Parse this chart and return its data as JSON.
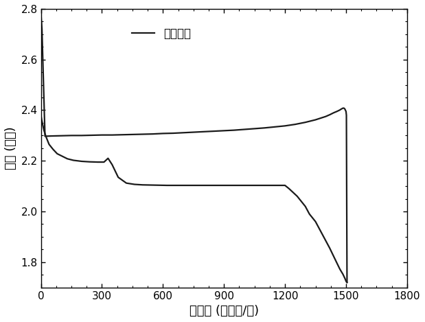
{
  "xlabel": "比容量 (毫安时/克)",
  "ylabel": "电压 (伏特)",
  "legend_label": "第一循环",
  "xlim": [
    0,
    1800
  ],
  "ylim": [
    1.7,
    2.8
  ],
  "xticks": [
    0,
    300,
    600,
    900,
    1200,
    1500,
    1800
  ],
  "yticks": [
    1.8,
    2.0,
    2.2,
    2.4,
    2.6,
    2.8
  ],
  "line_color": "#1a1a1a",
  "line_width": 1.6,
  "background_color": "#ffffff",
  "discharge_x": [
    0,
    3,
    8,
    15,
    25,
    40,
    60,
    80,
    100,
    130,
    160,
    200,
    240,
    280,
    310,
    330,
    350,
    380,
    420,
    460,
    500,
    560,
    620,
    700,
    780,
    860,
    940,
    1020,
    1100,
    1180,
    1200,
    1220,
    1240,
    1260,
    1280,
    1300,
    1320,
    1350,
    1390,
    1420,
    1450,
    1470,
    1485,
    1495,
    1500,
    1502,
    1505
  ],
  "discharge_y": [
    2.38,
    2.365,
    2.345,
    2.32,
    2.295,
    2.265,
    2.245,
    2.228,
    2.22,
    2.208,
    2.202,
    2.198,
    2.196,
    2.195,
    2.195,
    2.21,
    2.185,
    2.135,
    2.112,
    2.107,
    2.105,
    2.104,
    2.103,
    2.103,
    2.103,
    2.103,
    2.103,
    2.103,
    2.103,
    2.103,
    2.103,
    2.09,
    2.075,
    2.06,
    2.04,
    2.02,
    1.99,
    1.96,
    1.9,
    1.855,
    1.805,
    1.772,
    1.752,
    1.735,
    1.725,
    1.722,
    1.72
  ],
  "charge_x": [
    1505,
    1502,
    1500,
    1497,
    1494,
    1490,
    1485,
    1478,
    1468,
    1455,
    1440,
    1420,
    1400,
    1350,
    1300,
    1250,
    1200,
    1150,
    1100,
    1050,
    1000,
    950,
    900,
    850,
    800,
    750,
    700,
    650,
    600,
    550,
    500,
    450,
    400,
    350,
    300,
    250,
    200,
    150,
    100,
    50,
    20,
    5,
    0
  ],
  "charge_y": [
    1.72,
    2.38,
    2.395,
    2.4,
    2.405,
    2.408,
    2.408,
    2.405,
    2.4,
    2.395,
    2.39,
    2.382,
    2.375,
    2.362,
    2.352,
    2.344,
    2.338,
    2.334,
    2.33,
    2.327,
    2.324,
    2.321,
    2.319,
    2.317,
    2.315,
    2.313,
    2.311,
    2.309,
    2.308,
    2.306,
    2.305,
    2.304,
    2.303,
    2.302,
    2.302,
    2.301,
    2.3,
    2.3,
    2.299,
    2.298,
    2.297,
    2.72,
    2.78
  ]
}
